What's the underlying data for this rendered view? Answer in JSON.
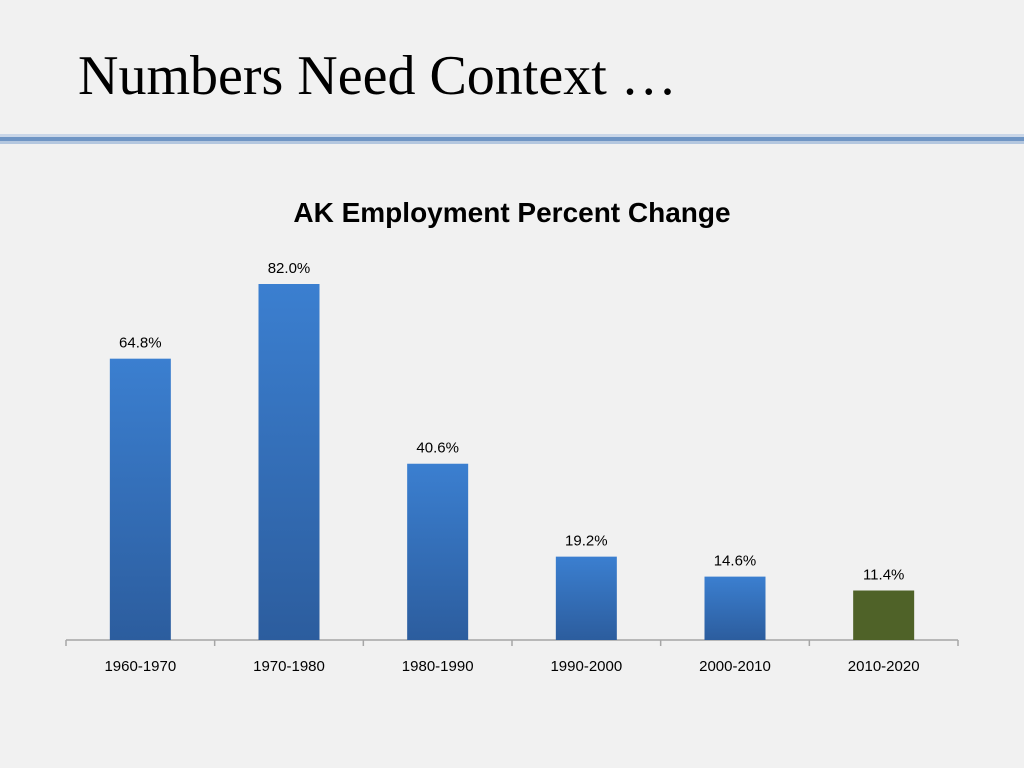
{
  "slide": {
    "title": "Numbers Need Context …"
  },
  "colors": {
    "bar_blue_top": "#3b7fd0",
    "bar_blue_bottom": "#2c5d9e",
    "bar_highlight": "#4f6228",
    "rule": "#6f95c4",
    "axis": "#a6a6a6"
  },
  "chart_data": {
    "type": "bar",
    "title": "AK Employment Percent Change",
    "xlabel": "",
    "ylabel": "",
    "categories": [
      "1960-1970",
      "1970-1980",
      "1980-1990",
      "1990-2000",
      "2000-2010",
      "2010-2020"
    ],
    "values": [
      64.8,
      82.0,
      40.6,
      19.2,
      14.6,
      11.4
    ],
    "data_labels": [
      "64.8%",
      "82.0%",
      "40.6%",
      "19.2%",
      "14.6%",
      "11.4%"
    ],
    "highlight_index": 5,
    "ylim": [
      0,
      82.0
    ],
    "grid": false,
    "legend": "none"
  }
}
